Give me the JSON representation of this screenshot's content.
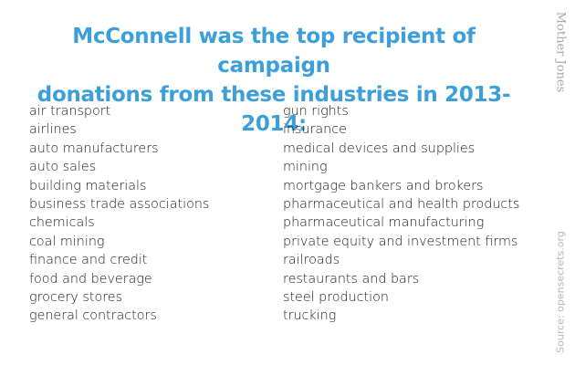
{
  "headline": {
    "line1": "McConnell was the top recipient of campaign",
    "line2": "donations from these industries in 2013-2014:"
  },
  "brand": "Mother Jones",
  "source": "Source: opensecrets.org",
  "colors": {
    "headline": "#3c9fd9",
    "body_text": "#1a1a1a",
    "sidebar_text": "#a8a8a8"
  },
  "industries_left": [
    "air transport",
    "airlines",
    "auto manufacturers",
    "auto sales",
    "building materials",
    "business trade associations",
    "chemicals",
    "coal mining",
    "finance and credit",
    "food and beverage",
    "grocery stores",
    "general contractors"
  ],
  "industries_right": [
    "gun rights",
    "insurance",
    "medical devices and supplies",
    "mining",
    "mortgage bankers and brokers",
    "pharmaceutical and health products",
    "pharmaceutical manufacturing",
    "private equity and investment firms",
    "railroads",
    "restaurants and bars",
    "steel production",
    "trucking"
  ]
}
